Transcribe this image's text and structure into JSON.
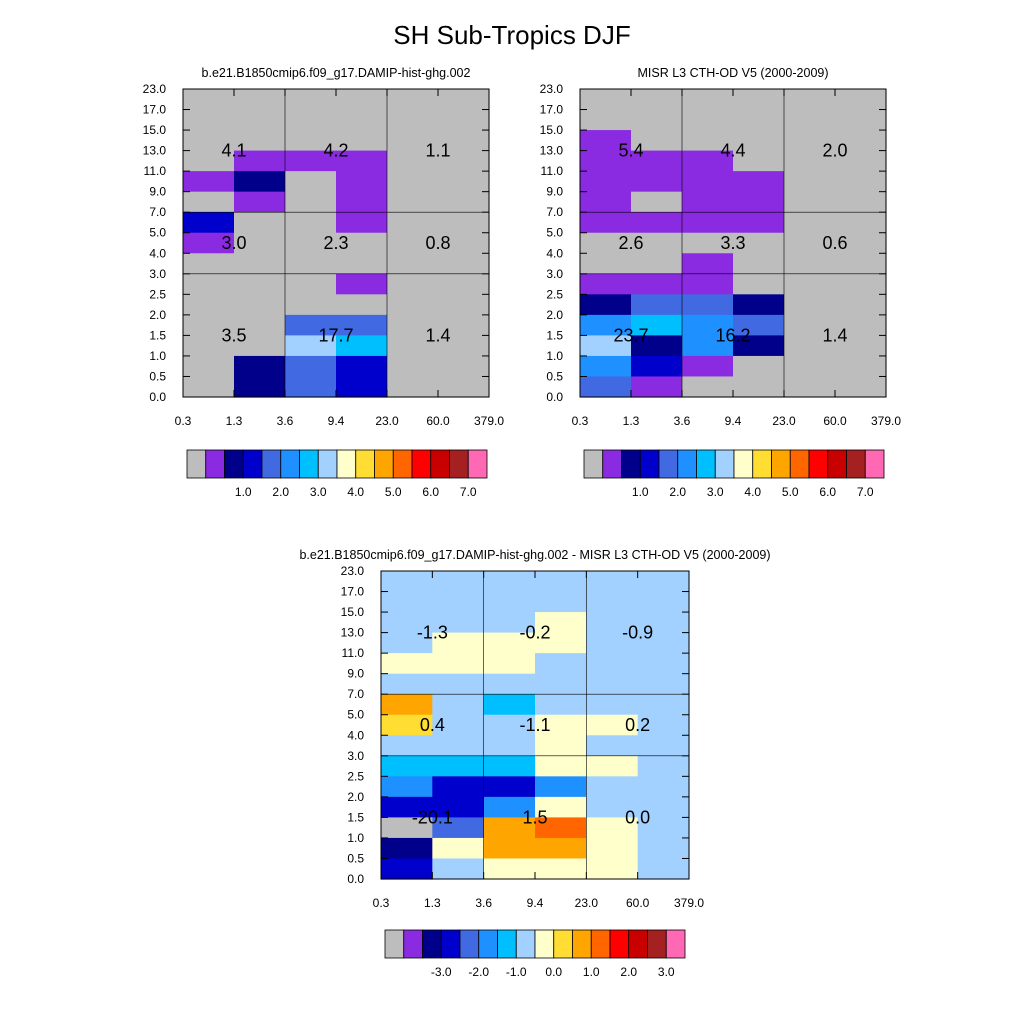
{
  "title": "SH Sub-Tropics DJF",
  "colors": {
    "missing": "#bdbdbd",
    "palette": [
      "#8a2be2",
      "#00008b",
      "#0000cd",
      "#4169e1",
      "#1e90ff",
      "#00bfff",
      "#a2d1ff",
      "#ffffcc",
      "#ffdd33",
      "#ffa500",
      "#ff6600",
      "#ff0000",
      "#c80000",
      "#a52020",
      "#ff69b4"
    ]
  },
  "chart_data": [
    {
      "type": "heatmap",
      "title": "b.e21.B1850cmip6.f09_g17.DAMIP-hist-ghg.002",
      "x_ticks": [
        "0.3",
        "1.3",
        "3.6",
        "9.4",
        "23.0",
        "60.0",
        "379.0"
      ],
      "y_ticks": [
        "0.0",
        "0.5",
        "1.0",
        "1.5",
        "2.0",
        "2.5",
        "3.0",
        "4.0",
        "5.0",
        "7.0",
        "9.0",
        "11.0",
        "13.0",
        "15.0",
        "17.0",
        "23.0"
      ],
      "colorbar_labels": [
        "1.0",
        "2.0",
        "3.0",
        "4.0",
        "5.0",
        "6.0",
        "7.0"
      ],
      "grid_rows_top_to_bottom": [
        [
          0,
          0,
          0,
          0,
          0,
          0
        ],
        [
          0,
          0,
          0,
          0,
          0,
          0
        ],
        [
          0,
          0,
          0,
          0,
          0,
          0
        ],
        [
          0,
          1,
          1,
          1,
          0,
          0
        ],
        [
          1,
          2,
          0,
          1,
          0,
          0
        ],
        [
          0,
          1,
          0,
          1,
          0,
          0
        ],
        [
          3,
          0,
          0,
          1,
          0,
          0
        ],
        [
          1,
          0,
          0,
          0,
          0,
          0
        ],
        [
          0,
          0,
          0,
          0,
          0,
          0
        ],
        [
          0,
          0,
          0,
          1,
          0,
          0
        ],
        [
          0,
          0,
          0,
          0,
          0,
          0
        ],
        [
          0,
          0,
          4,
          4,
          0,
          0
        ],
        [
          0,
          0,
          7,
          6,
          0,
          0
        ],
        [
          0,
          2,
          4,
          3,
          0,
          0
        ],
        [
          0,
          2,
          4,
          3,
          0,
          0
        ]
      ],
      "box_values": [
        [
          "4.1",
          "4.2",
          "1.1"
        ],
        [
          "3.0",
          "2.3",
          "0.8"
        ],
        [
          "3.5",
          "17.7",
          "1.4"
        ]
      ]
    },
    {
      "type": "heatmap",
      "title": "MISR L3 CTH-OD V5 (2000-2009)",
      "x_ticks": [
        "0.3",
        "1.3",
        "3.6",
        "9.4",
        "23.0",
        "60.0",
        "379.0"
      ],
      "y_ticks": [
        "0.0",
        "0.5",
        "1.0",
        "1.5",
        "2.0",
        "2.5",
        "3.0",
        "4.0",
        "5.0",
        "7.0",
        "9.0",
        "11.0",
        "13.0",
        "15.0",
        "17.0",
        "23.0"
      ],
      "colorbar_labels": [
        "1.0",
        "2.0",
        "3.0",
        "4.0",
        "5.0",
        "6.0",
        "7.0"
      ],
      "grid_rows_top_to_bottom": [
        [
          0,
          0,
          0,
          0,
          0,
          0
        ],
        [
          0,
          0,
          0,
          0,
          0,
          0
        ],
        [
          1,
          0,
          0,
          0,
          0,
          0
        ],
        [
          1,
          1,
          1,
          0,
          0,
          0
        ],
        [
          1,
          1,
          1,
          1,
          0,
          0
        ],
        [
          1,
          0,
          1,
          1,
          0,
          0
        ],
        [
          1,
          1,
          1,
          1,
          0,
          0
        ],
        [
          0,
          0,
          0,
          0,
          0,
          0
        ],
        [
          0,
          0,
          1,
          0,
          0,
          0
        ],
        [
          1,
          1,
          1,
          0,
          0,
          0
        ],
        [
          2,
          4,
          4,
          2,
          0,
          0
        ],
        [
          5,
          6,
          5,
          4,
          0,
          0
        ],
        [
          7,
          2,
          5,
          2,
          0,
          0
        ],
        [
          5,
          3,
          1,
          0,
          0,
          0
        ],
        [
          4,
          1,
          0,
          0,
          0,
          0
        ]
      ],
      "box_values": [
        [
          "5.4",
          "4.4",
          "2.0"
        ],
        [
          "2.6",
          "3.3",
          "0.6"
        ],
        [
          "23.7",
          "16.2",
          "1.4"
        ]
      ]
    },
    {
      "type": "heatmap",
      "title": "b.e21.B1850cmip6.f09_g17.DAMIP-hist-ghg.002 - MISR L3 CTH-OD V5 (2000-2009)",
      "x_ticks": [
        "0.3",
        "1.3",
        "3.6",
        "9.4",
        "23.0",
        "60.0",
        "379.0"
      ],
      "y_ticks": [
        "0.0",
        "0.5",
        "1.0",
        "1.5",
        "2.0",
        "2.5",
        "3.0",
        "4.0",
        "5.0",
        "7.0",
        "9.0",
        "11.0",
        "13.0",
        "15.0",
        "17.0",
        "23.0"
      ],
      "colorbar_labels": [
        "-3.0",
        "-2.0",
        "-1.0",
        "0.0",
        "1.0",
        "2.0",
        "3.0"
      ],
      "grid_rows_top_to_bottom": [
        [
          7,
          7,
          7,
          7,
          7,
          7
        ],
        [
          7,
          7,
          7,
          7,
          7,
          7
        ],
        [
          7,
          7,
          7,
          8,
          7,
          7
        ],
        [
          7,
          8,
          8,
          8,
          7,
          7
        ],
        [
          8,
          8,
          8,
          7,
          7,
          7
        ],
        [
          7,
          7,
          7,
          7,
          7,
          7
        ],
        [
          10,
          7,
          6,
          7,
          7,
          7
        ],
        [
          9,
          7,
          7,
          8,
          8,
          7
        ],
        [
          7,
          7,
          7,
          8,
          7,
          7
        ],
        [
          6,
          6,
          6,
          8,
          8,
          7
        ],
        [
          5,
          3,
          3,
          5,
          7,
          7
        ],
        [
          3,
          3,
          5,
          8,
          7,
          7
        ],
        [
          0,
          4,
          10,
          11,
          8,
          7
        ],
        [
          2,
          8,
          10,
          10,
          8,
          7
        ],
        [
          3,
          7,
          8,
          8,
          8,
          7
        ]
      ],
      "box_values": [
        [
          "-1.3",
          "-0.2",
          "-0.9"
        ],
        [
          "0.4",
          "-1.1",
          "0.2"
        ],
        [
          "-20.1",
          "1.5",
          "0.0"
        ]
      ]
    }
  ]
}
